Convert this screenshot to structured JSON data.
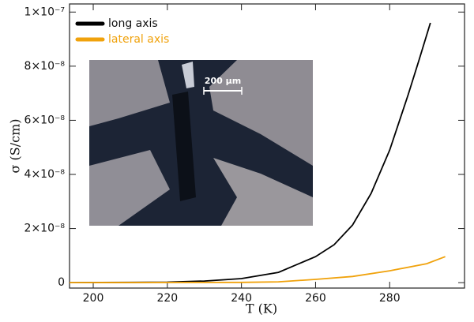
{
  "chart_data": {
    "type": "line",
    "xlabel": "T (K)",
    "ylabel": "σ (S/cm)",
    "xlim": [
      193.6,
      300.2
    ],
    "xticks": [
      200,
      220,
      240,
      260,
      280
    ],
    "ylim": [
      -2e-09,
      1.03e-07
    ],
    "yticks": [
      0,
      {
        "value": 2e-08,
        "label": "2×10⁻⁸"
      },
      {
        "value": 4e-08,
        "label": "4×10⁻⁸"
      },
      {
        "value": 6e-08,
        "label": "6×10⁻⁸"
      },
      {
        "value": 8e-08,
        "label": "8×10⁻⁸"
      },
      {
        "value": 1e-07,
        "label": "1×10⁻⁷"
      }
    ],
    "legend": "upper left",
    "annotations": [
      "200 μm"
    ],
    "series": [
      {
        "name": "long axis",
        "color": "#000000",
        "x": [
          193.6,
          210,
          220,
          230,
          240,
          250,
          260,
          265,
          270,
          275,
          280,
          285,
          288,
          291
        ],
        "values": [
          0,
          1e-10,
          2e-10,
          6e-10,
          1.5e-09,
          3.8e-09,
          9.6e-09,
          1.4e-08,
          2.13e-08,
          3.3e-08,
          4.9e-08,
          6.95e-08,
          8.26e-08,
          9.6e-08
        ]
      },
      {
        "name": "lateral axis",
        "color": "#f0a20c",
        "x": [
          193.6,
          240,
          250,
          260,
          270,
          280,
          290,
          295
        ],
        "values": [
          0,
          1e-10,
          3e-10,
          1.2e-09,
          2.3e-09,
          4.4e-09,
          7e-09,
          9.6e-09
        ]
      }
    ]
  }
}
